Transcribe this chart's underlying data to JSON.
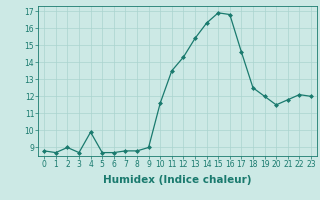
{
  "x": [
    0,
    1,
    2,
    3,
    4,
    5,
    6,
    7,
    8,
    9,
    10,
    11,
    12,
    13,
    14,
    15,
    16,
    17,
    18,
    19,
    20,
    21,
    22,
    23
  ],
  "y": [
    8.8,
    8.7,
    9.0,
    8.7,
    9.9,
    8.7,
    8.7,
    8.8,
    8.8,
    9.0,
    11.6,
    13.5,
    14.3,
    15.4,
    16.3,
    16.9,
    16.8,
    14.6,
    12.5,
    12.0,
    11.5,
    11.8,
    12.1,
    12.0
  ],
  "line_color": "#1a7a6e",
  "marker": "D",
  "marker_size": 2.0,
  "bg_color": "#cce9e5",
  "grid_color": "#aad4cf",
  "xlabel": "Humidex (Indice chaleur)",
  "ylim": [
    8.5,
    17.3
  ],
  "xlim": [
    -0.5,
    23.5
  ],
  "yticks": [
    9,
    10,
    11,
    12,
    13,
    14,
    15,
    16,
    17
  ],
  "xticks": [
    0,
    1,
    2,
    3,
    4,
    5,
    6,
    7,
    8,
    9,
    10,
    11,
    12,
    13,
    14,
    15,
    16,
    17,
    18,
    19,
    20,
    21,
    22,
    23
  ],
  "tick_fontsize": 5.5,
  "xlabel_fontsize": 7.5,
  "line_width": 0.9
}
